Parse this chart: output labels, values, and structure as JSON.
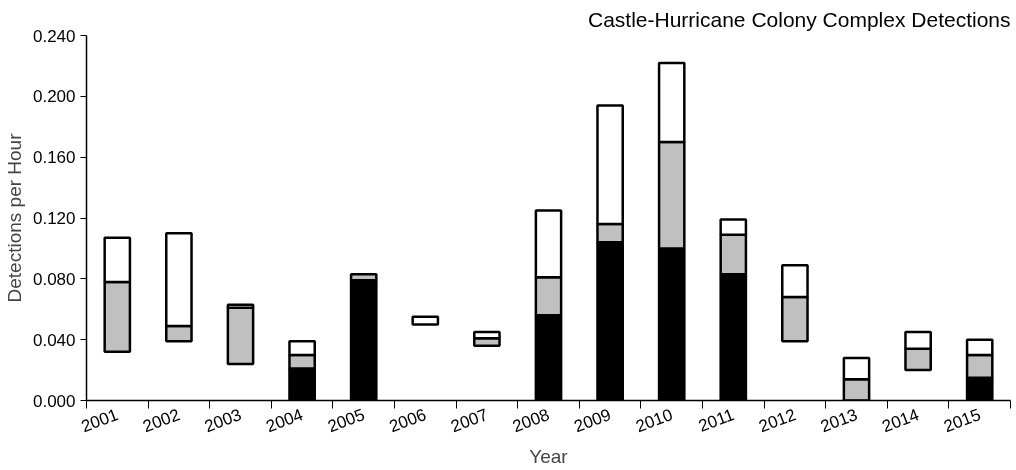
{
  "chart_data": {
    "type": "bar",
    "title": "Castle-Hurricane Colony Complex Detections",
    "xlabel": "Year",
    "ylabel": "Detections per Hour",
    "categories": [
      "2001",
      "2002",
      "2003",
      "2004",
      "2005",
      "2006",
      "2007",
      "2008",
      "2009",
      "2010",
      "2011",
      "2012",
      "2013",
      "2014",
      "2015"
    ],
    "series": [
      {
        "color": "#000000",
        "base": [
          null,
          null,
          null,
          0,
          0,
          null,
          null,
          0,
          0,
          0,
          0,
          null,
          null,
          null,
          0
        ],
        "values": [
          null,
          null,
          null,
          0.021,
          0.079,
          null,
          null,
          0.056,
          0.104,
          0.1,
          0.083,
          null,
          null,
          null,
          0.015
        ]
      },
      {
        "color": "#c0c0c0",
        "base": [
          0.032,
          0.039,
          0.024,
          0.021,
          0.079,
          null,
          0.036,
          0.056,
          0.104,
          0.1,
          0.083,
          0.039,
          0,
          0.02,
          0.015
        ],
        "values": [
          0.046,
          0.01,
          0.037,
          0.009,
          0.004,
          null,
          0.005,
          0.025,
          0.012,
          0.07,
          0.026,
          0.029,
          0.014,
          0.014,
          0.015
        ]
      },
      {
        "color": "#ffffff",
        "base": [
          0.078,
          0.049,
          0.061,
          0.03,
          null,
          0.05,
          0.041,
          0.081,
          0.116,
          0.17,
          0.109,
          0.068,
          0.014,
          0.034,
          0.03
        ],
        "values": [
          0.029,
          0.061,
          0.002,
          0.009,
          null,
          0.005,
          0.004,
          0.044,
          0.078,
          0.052,
          0.01,
          0.021,
          0.014,
          0.011,
          0.01
        ]
      }
    ],
    "ylim": [
      0,
      0.24
    ],
    "yticks": [
      {
        "value": 0,
        "label": "0.000"
      },
      {
        "value": 0.04,
        "label": "0.040"
      },
      {
        "value": 0.08,
        "label": "0.080"
      },
      {
        "value": 0.12,
        "label": "0.120"
      },
      {
        "value": 0.16,
        "label": "0.160"
      },
      {
        "value": 0.2,
        "label": "0.200"
      },
      {
        "value": 0.24,
        "label": "0.240"
      }
    ],
    "grid": false
  }
}
